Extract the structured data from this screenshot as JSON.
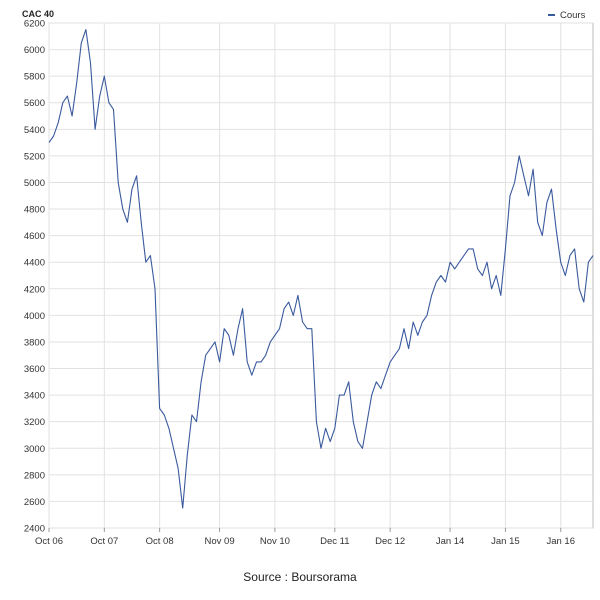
{
  "chart_data": {
    "type": "line",
    "title": "CAC 40",
    "xlabel": "",
    "ylabel": "",
    "ylim": [
      2400,
      6200
    ],
    "y_ticks": [
      2400,
      2600,
      2800,
      3000,
      3200,
      3400,
      3600,
      3800,
      4000,
      4200,
      4400,
      4600,
      4800,
      5000,
      5200,
      5400,
      5600,
      5800,
      6000,
      6200
    ],
    "x_tick_labels": [
      "Oct 06",
      "Oct 07",
      "Oct 08",
      "Nov 09",
      "Nov 10",
      "Dec 11",
      "Dec 12",
      "Jan 14",
      "Jan 15",
      "Jan 16"
    ],
    "x_ticks": [
      "2006-10",
      "2007-10",
      "2008-10",
      "2009-11",
      "2010-11",
      "2011-12",
      "2012-12",
      "2014-01",
      "2015-01",
      "2016-01"
    ],
    "xlim": [
      "2006-10",
      "2016-08"
    ],
    "grid": true,
    "legend_position": "top-right",
    "series": [
      {
        "name": "Cours",
        "color": "#3a5a9e",
        "x": [
          "2006-10",
          "2006-11",
          "2006-12",
          "2007-01",
          "2007-02",
          "2007-03",
          "2007-04",
          "2007-05",
          "2007-06",
          "2007-07",
          "2007-08",
          "2007-09",
          "2007-10",
          "2007-11",
          "2007-12",
          "2008-01",
          "2008-02",
          "2008-03",
          "2008-04",
          "2008-05",
          "2008-06",
          "2008-07",
          "2008-08",
          "2008-09",
          "2008-10",
          "2008-11",
          "2008-12",
          "2009-01",
          "2009-02",
          "2009-03",
          "2009-04",
          "2009-05",
          "2009-06",
          "2009-07",
          "2009-08",
          "2009-09",
          "2009-10",
          "2009-11",
          "2009-12",
          "2010-01",
          "2010-02",
          "2010-03",
          "2010-04",
          "2010-05",
          "2010-06",
          "2010-07",
          "2010-08",
          "2010-09",
          "2010-10",
          "2010-11",
          "2010-12",
          "2011-01",
          "2011-02",
          "2011-03",
          "2011-04",
          "2011-05",
          "2011-06",
          "2011-07",
          "2011-08",
          "2011-09",
          "2011-10",
          "2011-11",
          "2011-12",
          "2012-01",
          "2012-02",
          "2012-03",
          "2012-04",
          "2012-05",
          "2012-06",
          "2012-07",
          "2012-08",
          "2012-09",
          "2012-10",
          "2012-11",
          "2012-12",
          "2013-01",
          "2013-02",
          "2013-03",
          "2013-04",
          "2013-05",
          "2013-06",
          "2013-07",
          "2013-08",
          "2013-09",
          "2013-10",
          "2013-11",
          "2013-12",
          "2014-01",
          "2014-02",
          "2014-03",
          "2014-04",
          "2014-05",
          "2014-06",
          "2014-07",
          "2014-08",
          "2014-09",
          "2014-10",
          "2014-11",
          "2014-12",
          "2015-01",
          "2015-02",
          "2015-03",
          "2015-04",
          "2015-05",
          "2015-06",
          "2015-07",
          "2015-08",
          "2015-09",
          "2015-10",
          "2015-11",
          "2015-12",
          "2016-01",
          "2016-02",
          "2016-03",
          "2016-04",
          "2016-05",
          "2016-06",
          "2016-07",
          "2016-08"
        ],
        "values": [
          5300,
          5350,
          5450,
          5600,
          5650,
          5500,
          5750,
          6050,
          6150,
          5900,
          5400,
          5650,
          5800,
          5600,
          5550,
          5000,
          4800,
          4700,
          4950,
          5050,
          4700,
          4400,
          4450,
          4200,
          3300,
          3250,
          3150,
          3000,
          2850,
          2550,
          2950,
          3250,
          3200,
          3500,
          3700,
          3750,
          3800,
          3650,
          3900,
          3850,
          3700,
          3900,
          4050,
          3650,
          3550,
          3650,
          3650,
          3700,
          3800,
          3850,
          3900,
          4050,
          4100,
          4000,
          4150,
          3950,
          3900,
          3900,
          3200,
          3000,
          3150,
          3050,
          3150,
          3400,
          3400,
          3500,
          3200,
          3050,
          3000,
          3200,
          3400,
          3500,
          3450,
          3550,
          3650,
          3700,
          3750,
          3900,
          3750,
          3950,
          3850,
          3950,
          4000,
          4150,
          4250,
          4300,
          4250,
          4400,
          4350,
          4400,
          4450,
          4500,
          4500,
          4350,
          4300,
          4400,
          4200,
          4300,
          4150,
          4500,
          4900,
          5000,
          5200,
          5050,
          4900,
          5100,
          4700,
          4600,
          4850,
          4950,
          4650,
          4400,
          4300,
          4450,
          4500,
          4200,
          4100,
          4400,
          4450
        ]
      }
    ]
  },
  "source_caption": "Source : Boursorama"
}
